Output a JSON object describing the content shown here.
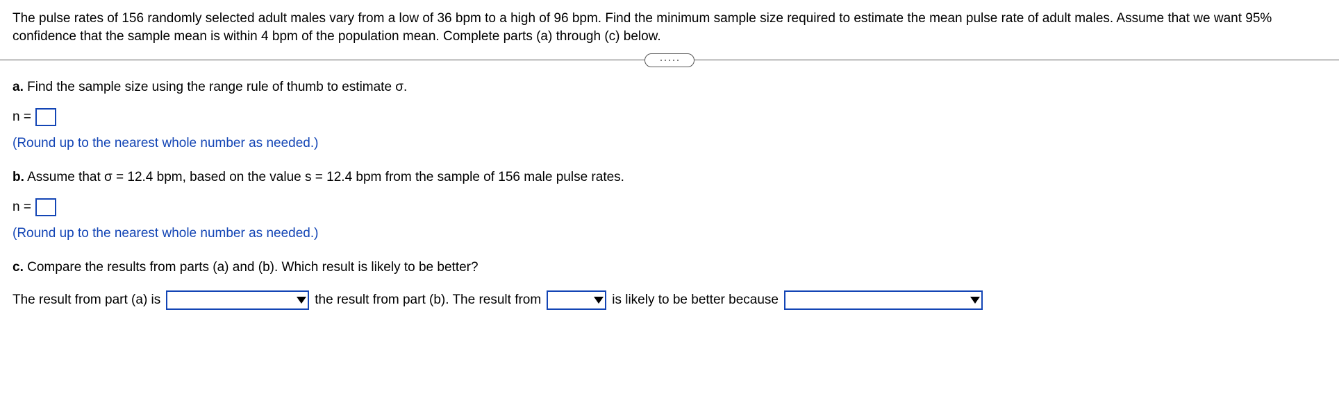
{
  "intro": "The pulse rates of 156 randomly selected adult males vary from a low of 36 bpm to a high of 96 bpm. Find the minimum sample size required to estimate the mean pulse rate of adult males. Assume that we want 95% confidence that the sample mean is within 4 bpm of the population mean. Complete parts (a) through (c) below.",
  "partA": {
    "label": "a.",
    "text": " Find the sample size using the range rule of thumb to estimate σ.",
    "n_label": "n =",
    "hint": "(Round up to the nearest whole number as needed.)"
  },
  "partB": {
    "label": "b.",
    "text": " Assume that σ = 12.4 bpm, based on the value s = 12.4 bpm from the sample of 156 male pulse rates.",
    "n_label": "n =",
    "hint": "(Round up to the nearest whole number as needed.)"
  },
  "partC": {
    "label": "c.",
    "text": " Compare the results from parts (a) and (b). Which result is likely to be better?",
    "seg1": "The result from part (a) is",
    "seg2": "the result from part (b). The result from",
    "seg3": "is likely to be better because",
    "select_widths": {
      "w1": 180,
      "w2": 60,
      "w3": 260
    }
  },
  "colors": {
    "hint": "#1345b5",
    "border": "#1345b5"
  }
}
